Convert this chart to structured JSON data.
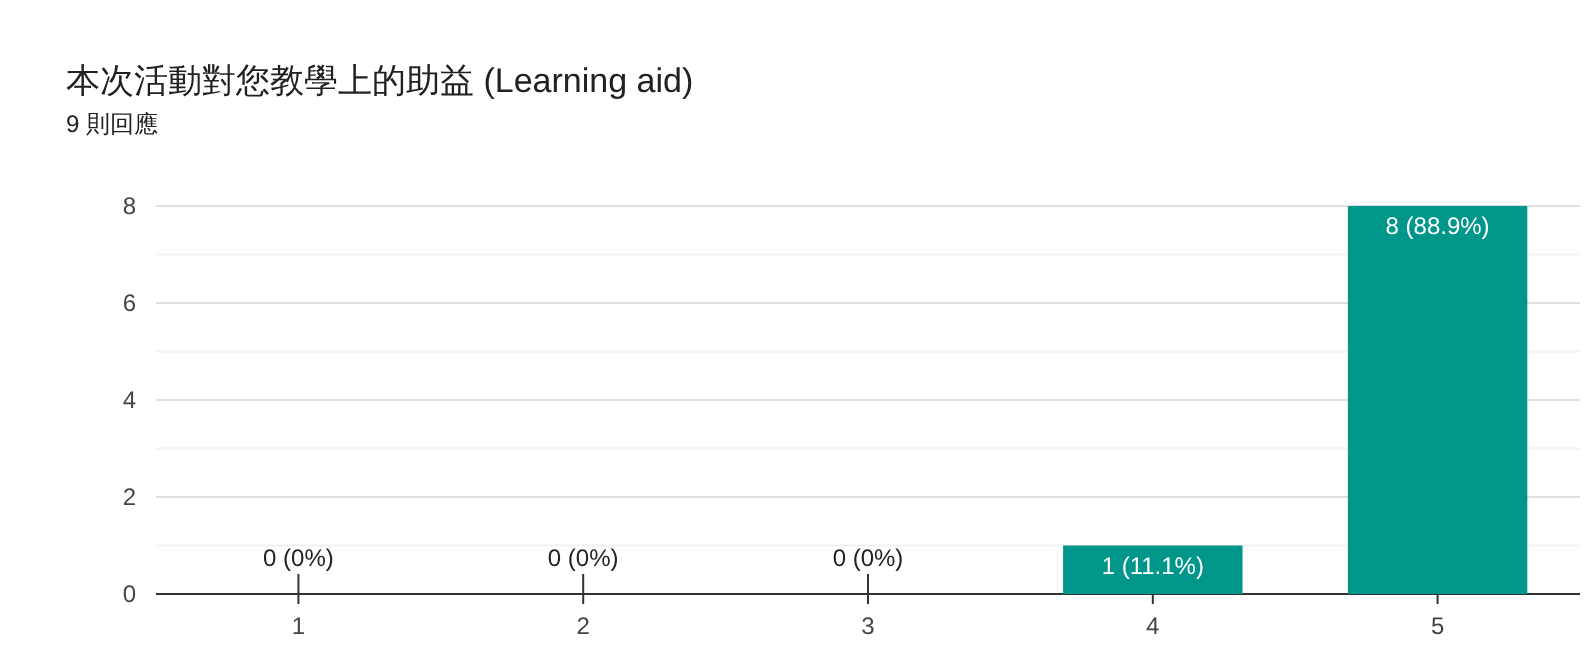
{
  "chart_data": {
    "type": "bar",
    "title": "本次活動對您教學上的助益 (Learning aid)",
    "subtitle": "9 則回應",
    "categories": [
      "1",
      "2",
      "3",
      "4",
      "5"
    ],
    "values": [
      0,
      0,
      0,
      1,
      8
    ],
    "color": "#00968a",
    "value_labels": [
      "0 (0%)",
      "0 (0%)",
      "0 (0%)",
      "1 (11.1%)",
      "8 (88.9%)"
    ],
    "ylim": [
      0,
      8
    ],
    "yticks": [
      0,
      {
        "value": 1,
        "label": null
      },
      2,
      {
        "value": 3,
        "label": null
      },
      4,
      {
        "value": 5,
        "label": null
      },
      6,
      {
        "value": 7,
        "label": null
      },
      8
    ],
    "grid": true
  }
}
